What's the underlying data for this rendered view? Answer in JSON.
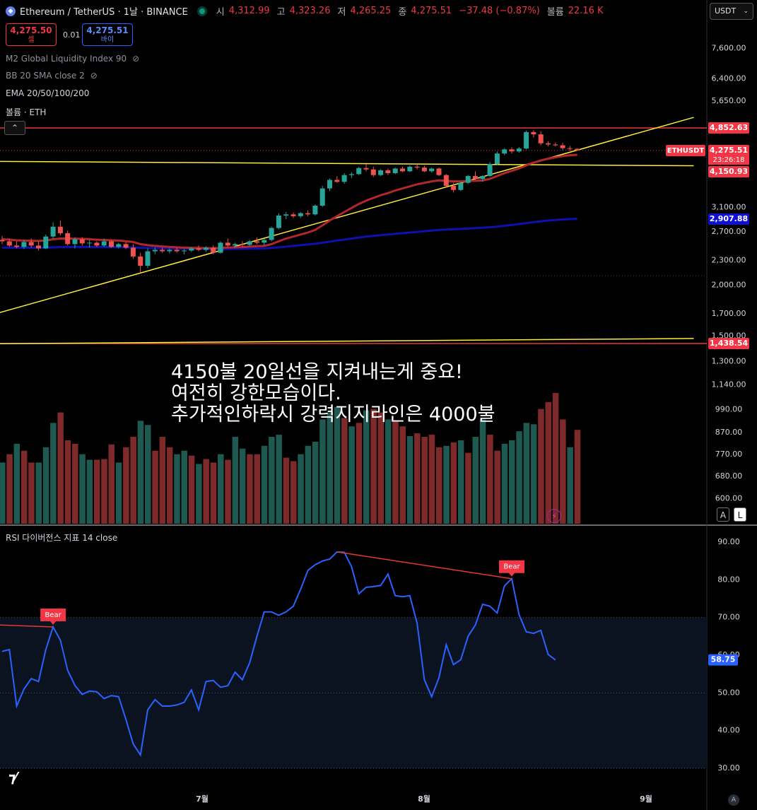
{
  "header": {
    "symbol": "Ethereum / TetherUS · 1날 · BINANCE",
    "open_label": "시",
    "open": "4,312.99",
    "high_label": "고",
    "high": "4,323.26",
    "low_label": "저",
    "low": "4,265.25",
    "close_label": "종",
    "close": "4,275.51",
    "change": "−37.48 (−0.87%)",
    "volume_label": "볼륨",
    "volume": "22.16 K"
  },
  "trade": {
    "sell_price": "4,275.50",
    "sell_label": "셀",
    "spread": "0.01",
    "buy_price": "4,275.51",
    "buy_label": "바이"
  },
  "currency": "USDT",
  "indicators": [
    {
      "label": "M2 Global Liquidity Index 90",
      "hidden": true
    },
    {
      "label": "BB 20 SMA close 2",
      "hidden": true
    },
    {
      "label": "EMA 20/50/100/200",
      "hidden": false
    },
    {
      "label": "볼륨 · ETH",
      "hidden": false
    }
  ],
  "annotation": [
    "4150불 20일선을 지켜내는게 중요!",
    "여전히 강한모습이다.",
    "추가적인하락시 강력지지라인은 4000불"
  ],
  "rsi_title": "RSI 다이버전스 지표 14 close",
  "scale_buttons": [
    "A",
    "L"
  ],
  "corner_label": "A",
  "colors": {
    "up": "#26a69a",
    "down": "#ef5350",
    "vol_up": "#1e5a52",
    "vol_down": "#7f2a2a",
    "ema20": "#b2272d",
    "ema50": "#1010b0",
    "trend": "#ffeb3b",
    "hline": "#e53935",
    "rsi": "#2962ff"
  },
  "chart_data": [
    {
      "type": "candlestick",
      "scale": "log",
      "price_axis_ticks": [
        7600,
        6400,
        5650,
        3100,
        2700,
        2300,
        2000,
        1700,
        1500,
        1300,
        1140,
        990,
        870,
        770,
        680,
        600
      ],
      "price_axis_tick_labels": [
        "7,600.00",
        "6,400.00",
        "5,650.00",
        "3,100.00",
        "2,700.00",
        "2,300.00",
        "2,000.00",
        "1,700.00",
        "1,500.00",
        "1,300.00",
        "1,140.00",
        "990.00",
        "870.00",
        "770.00",
        "680.00",
        "600.00"
      ],
      "x_ticks": [
        "7월",
        "8월",
        "9월"
      ],
      "price_labels": [
        {
          "text": "4,852.63",
          "value": 4852.63,
          "color": "#f23645"
        },
        {
          "text": "ETHUSDT",
          "value": 4275.51,
          "color": "#f23645"
        },
        {
          "text": "4,275.51",
          "value": 4275.51,
          "color": "#f23645"
        },
        {
          "text": "23:26:18",
          "value": 4275.51,
          "color": "#f23645"
        },
        {
          "text": "4,150.93",
          "value": 4150.93,
          "color": "#f23645"
        },
        {
          "text": "2,907.88",
          "value": 2907.88,
          "color": "#1010d0"
        },
        {
          "text": "1,438.54",
          "value": 1438.54,
          "color": "#f23645"
        }
      ],
      "hlines": [
        4852.63,
        1438.54
      ],
      "candles": [
        {
          "o": 2580,
          "h": 2640,
          "l": 2520,
          "c": 2560
        },
        {
          "o": 2560,
          "h": 2600,
          "l": 2480,
          "c": 2500
        },
        {
          "o": 2500,
          "h": 2560,
          "l": 2460,
          "c": 2480
        },
        {
          "o": 2480,
          "h": 2580,
          "l": 2450,
          "c": 2550
        },
        {
          "o": 2550,
          "h": 2600,
          "l": 2470,
          "c": 2500
        },
        {
          "o": 2500,
          "h": 2560,
          "l": 2430,
          "c": 2460
        },
        {
          "o": 2460,
          "h": 2660,
          "l": 2450,
          "c": 2630
        },
        {
          "o": 2630,
          "h": 2850,
          "l": 2600,
          "c": 2780
        },
        {
          "o": 2780,
          "h": 2880,
          "l": 2650,
          "c": 2680
        },
        {
          "o": 2680,
          "h": 2720,
          "l": 2500,
          "c": 2520
        },
        {
          "o": 2520,
          "h": 2620,
          "l": 2460,
          "c": 2590
        },
        {
          "o": 2590,
          "h": 2620,
          "l": 2500,
          "c": 2530
        },
        {
          "o": 2530,
          "h": 2580,
          "l": 2470,
          "c": 2540
        },
        {
          "o": 2540,
          "h": 2560,
          "l": 2480,
          "c": 2500
        },
        {
          "o": 2500,
          "h": 2600,
          "l": 2480,
          "c": 2560
        },
        {
          "o": 2560,
          "h": 2580,
          "l": 2470,
          "c": 2480
        },
        {
          "o": 2480,
          "h": 2540,
          "l": 2460,
          "c": 2520
        },
        {
          "o": 2520,
          "h": 2550,
          "l": 2450,
          "c": 2470
        },
        {
          "o": 2470,
          "h": 2520,
          "l": 2320,
          "c": 2350
        },
        {
          "o": 2350,
          "h": 2400,
          "l": 2150,
          "c": 2230
        },
        {
          "o": 2230,
          "h": 2460,
          "l": 2200,
          "c": 2420
        },
        {
          "o": 2420,
          "h": 2470,
          "l": 2380,
          "c": 2440
        },
        {
          "o": 2440,
          "h": 2470,
          "l": 2400,
          "c": 2420
        },
        {
          "o": 2420,
          "h": 2460,
          "l": 2390,
          "c": 2440
        },
        {
          "o": 2440,
          "h": 2470,
          "l": 2400,
          "c": 2420
        },
        {
          "o": 2420,
          "h": 2450,
          "l": 2380,
          "c": 2430
        },
        {
          "o": 2430,
          "h": 2480,
          "l": 2410,
          "c": 2460
        },
        {
          "o": 2460,
          "h": 2500,
          "l": 2420,
          "c": 2440
        },
        {
          "o": 2440,
          "h": 2490,
          "l": 2410,
          "c": 2470
        },
        {
          "o": 2470,
          "h": 2500,
          "l": 2380,
          "c": 2400
        },
        {
          "o": 2400,
          "h": 2560,
          "l": 2390,
          "c": 2540
        },
        {
          "o": 2540,
          "h": 2600,
          "l": 2480,
          "c": 2500
        },
        {
          "o": 2500,
          "h": 2540,
          "l": 2460,
          "c": 2520
        },
        {
          "o": 2520,
          "h": 2560,
          "l": 2480,
          "c": 2510
        },
        {
          "o": 2510,
          "h": 2580,
          "l": 2490,
          "c": 2560
        },
        {
          "o": 2560,
          "h": 2620,
          "l": 2520,
          "c": 2540
        },
        {
          "o": 2540,
          "h": 2600,
          "l": 2500,
          "c": 2580
        },
        {
          "o": 2580,
          "h": 2780,
          "l": 2560,
          "c": 2760
        },
        {
          "o": 2760,
          "h": 3000,
          "l": 2740,
          "c": 2960
        },
        {
          "o": 2960,
          "h": 3020,
          "l": 2900,
          "c": 2980
        },
        {
          "o": 2980,
          "h": 3010,
          "l": 2920,
          "c": 2950
        },
        {
          "o": 2950,
          "h": 3020,
          "l": 2920,
          "c": 3000
        },
        {
          "o": 3000,
          "h": 3050,
          "l": 2950,
          "c": 2980
        },
        {
          "o": 2980,
          "h": 3150,
          "l": 2960,
          "c": 3130
        },
        {
          "o": 3130,
          "h": 3500,
          "l": 3110,
          "c": 3450
        },
        {
          "o": 3450,
          "h": 3650,
          "l": 3400,
          "c": 3620
        },
        {
          "o": 3620,
          "h": 3700,
          "l": 3560,
          "c": 3580
        },
        {
          "o": 3580,
          "h": 3760,
          "l": 3540,
          "c": 3720
        },
        {
          "o": 3720,
          "h": 3780,
          "l": 3660,
          "c": 3740
        },
        {
          "o": 3740,
          "h": 3900,
          "l": 3720,
          "c": 3870
        },
        {
          "o": 3870,
          "h": 3950,
          "l": 3800,
          "c": 3840
        },
        {
          "o": 3840,
          "h": 3900,
          "l": 3680,
          "c": 3720
        },
        {
          "o": 3720,
          "h": 3850,
          "l": 3700,
          "c": 3820
        },
        {
          "o": 3820,
          "h": 3860,
          "l": 3720,
          "c": 3760
        },
        {
          "o": 3760,
          "h": 3880,
          "l": 3740,
          "c": 3860
        },
        {
          "o": 3860,
          "h": 3900,
          "l": 3780,
          "c": 3800
        },
        {
          "o": 3800,
          "h": 3930,
          "l": 3780,
          "c": 3900
        },
        {
          "o": 3900,
          "h": 3960,
          "l": 3840,
          "c": 3880
        },
        {
          "o": 3880,
          "h": 3920,
          "l": 3780,
          "c": 3800
        },
        {
          "o": 3800,
          "h": 3880,
          "l": 3770,
          "c": 3860
        },
        {
          "o": 3860,
          "h": 3880,
          "l": 3700,
          "c": 3720
        },
        {
          "o": 3720,
          "h": 3740,
          "l": 3480,
          "c": 3500
        },
        {
          "o": 3500,
          "h": 3560,
          "l": 3370,
          "c": 3420
        },
        {
          "o": 3420,
          "h": 3580,
          "l": 3400,
          "c": 3560
        },
        {
          "o": 3560,
          "h": 3720,
          "l": 3540,
          "c": 3700
        },
        {
          "o": 3700,
          "h": 3800,
          "l": 3620,
          "c": 3640
        },
        {
          "o": 3640,
          "h": 3720,
          "l": 3580,
          "c": 3700
        },
        {
          "o": 3700,
          "h": 4000,
          "l": 3680,
          "c": 3960
        },
        {
          "o": 3960,
          "h": 4250,
          "l": 3940,
          "c": 4200
        },
        {
          "o": 4200,
          "h": 4330,
          "l": 4160,
          "c": 4300
        },
        {
          "o": 4300,
          "h": 4350,
          "l": 4200,
          "c": 4250
        },
        {
          "o": 4250,
          "h": 4360,
          "l": 4220,
          "c": 4320
        },
        {
          "o": 4320,
          "h": 4780,
          "l": 4300,
          "c": 4740
        },
        {
          "o": 4740,
          "h": 4790,
          "l": 4600,
          "c": 4680
        },
        {
          "o": 4680,
          "h": 4760,
          "l": 4400,
          "c": 4450
        },
        {
          "o": 4450,
          "h": 4500,
          "l": 4380,
          "c": 4420
        },
        {
          "o": 4420,
          "h": 4470,
          "l": 4370,
          "c": 4400
        },
        {
          "o": 4400,
          "h": 4460,
          "l": 4280,
          "c": 4330
        },
        {
          "o": 4330,
          "h": 4380,
          "l": 4260,
          "c": 4312.99
        },
        {
          "o": 4312.99,
          "h": 4323.26,
          "l": 4265.25,
          "c": 4275.51
        }
      ],
      "ema20": [
        2590,
        2585,
        2575,
        2570,
        2568,
        2565,
        2570,
        2590,
        2600,
        2600,
        2598,
        2596,
        2590,
        2584,
        2580,
        2575,
        2570,
        2562,
        2550,
        2520,
        2505,
        2495,
        2488,
        2480,
        2475,
        2470,
        2468,
        2465,
        2464,
        2460,
        2468,
        2472,
        2475,
        2478,
        2485,
        2490,
        2495,
        2520,
        2560,
        2600,
        2630,
        2660,
        2690,
        2730,
        2800,
        2880,
        2950,
        3020,
        3090,
        3160,
        3220,
        3270,
        3320,
        3360,
        3410,
        3450,
        3490,
        3530,
        3560,
        3590,
        3610,
        3600,
        3590,
        3590,
        3600,
        3600,
        3610,
        3640,
        3700,
        3760,
        3810,
        3860,
        3930,
        3990,
        4040,
        4080,
        4110,
        4140,
        4160,
        4170
      ],
      "ema50": [
        2470,
        2470,
        2470,
        2470,
        2470,
        2470,
        2472,
        2475,
        2478,
        2480,
        2480,
        2480,
        2480,
        2480,
        2480,
        2478,
        2478,
        2476,
        2472,
        2468,
        2466,
        2464,
        2462,
        2460,
        2458,
        2456,
        2455,
        2454,
        2453,
        2452,
        2452,
        2452,
        2453,
        2454,
        2456,
        2458,
        2460,
        2466,
        2475,
        2485,
        2495,
        2505,
        2515,
        2525,
        2540,
        2555,
        2570,
        2585,
        2600,
        2615,
        2630,
        2640,
        2650,
        2660,
        2670,
        2680,
        2690,
        2700,
        2710,
        2720,
        2730,
        2735,
        2740,
        2745,
        2752,
        2758,
        2765,
        2772,
        2782,
        2795,
        2808,
        2822,
        2838,
        2853,
        2866,
        2878,
        2888,
        2896,
        2902,
        2907.88
      ],
      "trend_lines": [
        {
          "from": {
            "i": -2,
            "v": 1680
          },
          "to": {
            "i": 95,
            "v": 5150
          }
        },
        {
          "from": {
            "i": -2,
            "v": 4020
          },
          "to": {
            "i": 95,
            "v": 3920
          }
        },
        {
          "from": {
            "i": -2,
            "v": 1436
          },
          "to": {
            "i": 95,
            "v": 1480
          }
        }
      ]
    },
    {
      "type": "bar",
      "name": "volume",
      "values": [
        880,
        1000,
        1150,
        1050,
        880,
        880,
        1100,
        1450,
        1600,
        1200,
        1150,
        1000,
        920,
        920,
        930,
        1140,
        880,
        1100,
        1250,
        1480,
        1420,
        1050,
        1250,
        1100,
        1000,
        1050,
        980,
        860,
        930,
        880,
        1000,
        920,
        1250,
        1080,
        1000,
        1000,
        1120,
        1250,
        1280,
        950,
        900,
        1000,
        1120,
        1180,
        1500,
        1600,
        1680,
        1520,
        1400,
        1450,
        1630,
        1650,
        1600,
        1500,
        1480,
        1400,
        1260,
        1300,
        1250,
        1280,
        1100,
        1120,
        1170,
        1200,
        1020,
        1250,
        1500,
        1280,
        1050,
        1150,
        1200,
        1330,
        1450,
        1430,
        1650,
        1750,
        1880,
        1500,
        1100,
        1350
      ],
      "vol_up": [
        true,
        false,
        true,
        false,
        false,
        true,
        true,
        true,
        false,
        false,
        false,
        true,
        true,
        false,
        false,
        false,
        true,
        false,
        false,
        true,
        true,
        false,
        false,
        false,
        true,
        true,
        false,
        true,
        false,
        false,
        true,
        false,
        true,
        true,
        false,
        false,
        true,
        true,
        true,
        false,
        false,
        true,
        true,
        true,
        true,
        true,
        true,
        false,
        true,
        false,
        true,
        false,
        false,
        true,
        false,
        false,
        true,
        false,
        false,
        false,
        false,
        true,
        false,
        true,
        false,
        true,
        true,
        false,
        false,
        true,
        true,
        true,
        true,
        true,
        false,
        false,
        false,
        false,
        true,
        false
      ]
    },
    {
      "type": "line",
      "name": "RSI",
      "y_ticks": [
        90,
        80,
        70,
        60,
        50,
        40,
        30
      ],
      "y_tick_labels": [
        "90.00",
        "80.00",
        "70.00",
        "60.00",
        "50.00",
        "40.00",
        "30.00"
      ],
      "last_label": "58.75",
      "values": [
        61,
        61.5,
        46.5,
        51,
        53.8,
        53,
        61.5,
        67.5,
        64,
        56,
        52,
        49.6,
        50.5,
        50.3,
        48.5,
        49.3,
        49,
        43,
        36.5,
        33.5,
        45.5,
        48.2,
        46.5,
        46.5,
        46.8,
        47.5,
        50.8,
        45.5,
        53,
        53.3,
        51.5,
        51.9,
        55.5,
        53.5,
        58,
        65,
        71.5,
        71.5,
        70.6,
        71.5,
        73,
        77.5,
        82.5,
        84,
        85,
        85.5,
        87.4,
        87.3,
        83.5,
        76.3,
        78,
        78.2,
        78.5,
        81.5,
        75.8,
        75.5,
        75.8,
        68.5,
        53.5,
        49,
        54,
        62.8,
        57.5,
        58.8,
        65,
        68,
        73.5,
        73,
        71.2,
        78.4,
        80.3,
        70.8,
        66.2,
        65.8,
        66.6,
        60.2,
        58.75
      ],
      "divergence_lines": [
        {
          "from": {
            "i": -7,
            "v": 68.5
          },
          "to": {
            "i": 7,
            "v": 67.5
          }
        },
        {
          "from": {
            "i": 46,
            "v": 87.4
          },
          "to": {
            "i": 70,
            "v": 80.3
          }
        }
      ],
      "divergence_labels": [
        {
          "text": "Bear",
          "i": 7,
          "v": 67.5
        },
        {
          "text": "Bear",
          "i": 70,
          "v": 80.3
        }
      ],
      "band": [
        30,
        70
      ]
    }
  ]
}
